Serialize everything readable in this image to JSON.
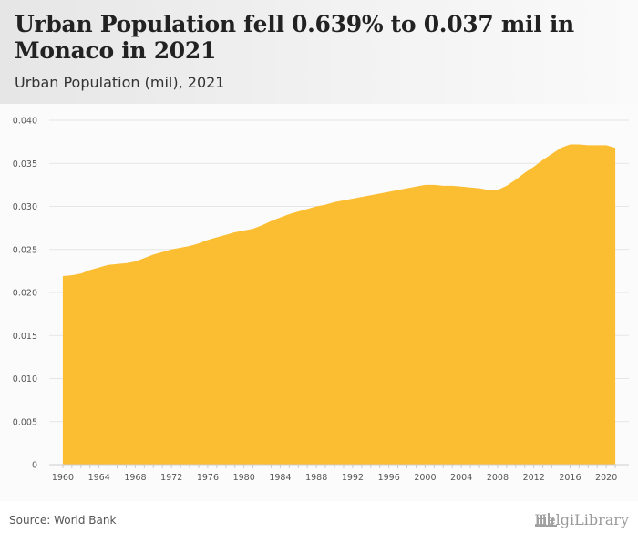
{
  "header": {
    "title": "Urban Population fell 0.639% to 0.037 mil in Monaco in 2021",
    "subtitle": "Urban Population (mil), 2021"
  },
  "footer": {
    "source": "Source: World Bank",
    "brand": "HelgiLibrary"
  },
  "colors": {
    "area_fill": "#fbbd31",
    "grid": "#e6e6e6",
    "axis_text": "#555555"
  },
  "chart_data": {
    "type": "area",
    "title": "Urban Population fell 0.639% to 0.037 mil in Monaco in 2021",
    "subtitle": "Urban Population (mil), 2021",
    "xlabel": "",
    "ylabel": "",
    "xlim": [
      1960,
      2021
    ],
    "ylim": [
      0,
      0.04
    ],
    "grid": true,
    "legend": "none",
    "x_ticks": [
      1960,
      1964,
      1968,
      1972,
      1976,
      1980,
      1984,
      1988,
      1992,
      1996,
      2000,
      2004,
      2008,
      2012,
      2016,
      2020
    ],
    "y_ticks": [
      0,
      0.005,
      0.01,
      0.015,
      0.02,
      0.025,
      0.03,
      0.035,
      0.04
    ],
    "y_tick_labels": [
      "0",
      "0.005",
      "0.010",
      "0.015",
      "0.020",
      "0.025",
      "0.030",
      "0.035",
      "0.040"
    ],
    "series": [
      {
        "name": "Urban Population (mil)",
        "x": [
          1960,
          1961,
          1962,
          1963,
          1964,
          1965,
          1966,
          1967,
          1968,
          1969,
          1970,
          1971,
          1972,
          1973,
          1974,
          1975,
          1976,
          1977,
          1978,
          1979,
          1980,
          1981,
          1982,
          1983,
          1984,
          1985,
          1986,
          1987,
          1988,
          1989,
          1990,
          1991,
          1992,
          1993,
          1994,
          1995,
          1996,
          1997,
          1998,
          1999,
          2000,
          2001,
          2002,
          2003,
          2004,
          2005,
          2006,
          2007,
          2008,
          2009,
          2010,
          2011,
          2012,
          2013,
          2014,
          2015,
          2016,
          2017,
          2018,
          2019,
          2020,
          2021
        ],
        "values": [
          0.0219,
          0.022,
          0.0222,
          0.0226,
          0.0229,
          0.0232,
          0.0233,
          0.0234,
          0.0236,
          0.024,
          0.0244,
          0.0247,
          0.025,
          0.0252,
          0.0254,
          0.0257,
          0.0261,
          0.0264,
          0.0267,
          0.027,
          0.0272,
          0.0274,
          0.0278,
          0.0283,
          0.0287,
          0.0291,
          0.0294,
          0.0297,
          0.03,
          0.0302,
          0.0305,
          0.0307,
          0.0309,
          0.0311,
          0.0313,
          0.0315,
          0.0317,
          0.0319,
          0.0321,
          0.0323,
          0.0325,
          0.0325,
          0.0324,
          0.0324,
          0.0323,
          0.0322,
          0.0321,
          0.0319,
          0.0319,
          0.0324,
          0.0331,
          0.0339,
          0.0346,
          0.0354,
          0.0361,
          0.0368,
          0.0372,
          0.0372,
          0.0371,
          0.0371,
          0.0371,
          0.0368
        ]
      }
    ]
  }
}
